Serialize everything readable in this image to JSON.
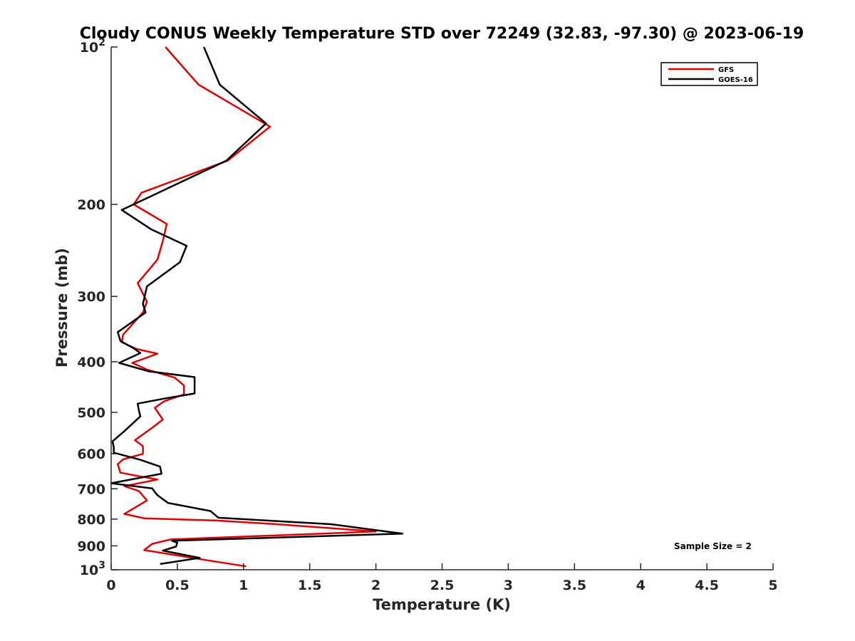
{
  "chart_data": {
    "type": "line",
    "title": "Cloudy CONUS Weekly Temperature STD over 72249 (32.83, -97.30) @ 2023-06-19",
    "xlabel": "Temperature (K)",
    "ylabel": "Pressure (mb)",
    "xlim": [
      0,
      5
    ],
    "ylim": [
      1000,
      100
    ],
    "yscale": "log",
    "y_reversed": true,
    "x_ticks": [
      {
        "value": 0,
        "label": "0"
      },
      {
        "value": 0.5,
        "label": "0.5"
      },
      {
        "value": 1,
        "label": "1"
      },
      {
        "value": 1.5,
        "label": "1.5"
      },
      {
        "value": 2,
        "label": "2"
      },
      {
        "value": 2.5,
        "label": "2.5"
      },
      {
        "value": 3,
        "label": "3"
      },
      {
        "value": 3.5,
        "label": "3.5"
      },
      {
        "value": 4,
        "label": "4"
      },
      {
        "value": 4.5,
        "label": "4.5"
      },
      {
        "value": 5,
        "label": "5"
      }
    ],
    "y_ticks": [
      {
        "value": 100,
        "base": "10",
        "exp": "2"
      },
      {
        "value": 200,
        "label": "200"
      },
      {
        "value": 300,
        "label": "300"
      },
      {
        "value": 400,
        "label": "400"
      },
      {
        "value": 500,
        "label": "500"
      },
      {
        "value": 600,
        "label": "600"
      },
      {
        "value": 700,
        "label": "700"
      },
      {
        "value": 800,
        "label": "800"
      },
      {
        "value": 900,
        "label": "900"
      },
      {
        "value": 1000,
        "base": "10",
        "exp": "3"
      }
    ],
    "grid": false,
    "legend": {
      "position": "top-right"
    },
    "annotation": "Sample Size = 2",
    "series": [
      {
        "name": "GFS",
        "color": "#e00000",
        "points": [
          [
            0.41,
            100
          ],
          [
            0.66,
            118
          ],
          [
            1.2,
            142
          ],
          [
            0.88,
            165
          ],
          [
            0.23,
            190
          ],
          [
            0.17,
            200
          ],
          [
            0.42,
            218
          ],
          [
            0.39,
            235
          ],
          [
            0.35,
            255
          ],
          [
            0.2,
            283
          ],
          [
            0.27,
            307
          ],
          [
            0.24,
            322
          ],
          [
            0.09,
            355
          ],
          [
            0.08,
            367
          ],
          [
            0.19,
            378
          ],
          [
            0.35,
            386
          ],
          [
            0.16,
            402
          ],
          [
            0.27,
            414
          ],
          [
            0.48,
            429
          ],
          [
            0.55,
            444
          ],
          [
            0.55,
            462
          ],
          [
            0.4,
            476
          ],
          [
            0.33,
            490
          ],
          [
            0.39,
            516
          ],
          [
            0.31,
            535
          ],
          [
            0.18,
            565
          ],
          [
            0.24,
            580
          ],
          [
            0.24,
            600
          ],
          [
            0.09,
            615
          ],
          [
            0.05,
            628
          ],
          [
            0.07,
            652
          ],
          [
            0.35,
            672
          ],
          [
            0.1,
            692
          ],
          [
            0.21,
            707
          ],
          [
            0.27,
            737
          ],
          [
            0.1,
            782
          ],
          [
            0.25,
            797
          ],
          [
            0.8,
            805
          ],
          [
            1.25,
            818
          ],
          [
            2.0,
            845
          ],
          [
            0.45,
            875
          ],
          [
            0.31,
            892
          ],
          [
            0.25,
            917
          ],
          [
            0.76,
            962
          ],
          [
            1.02,
            985
          ]
        ]
      },
      {
        "name": "GOES-16",
        "color": "#000000",
        "points": [
          [
            0.7,
            100
          ],
          [
            0.82,
            118
          ],
          [
            1.17,
            140
          ],
          [
            0.87,
            165
          ],
          [
            0.3,
            193
          ],
          [
            0.08,
            205
          ],
          [
            0.3,
            223
          ],
          [
            0.57,
            240
          ],
          [
            0.52,
            258
          ],
          [
            0.27,
            287
          ],
          [
            0.24,
            310
          ],
          [
            0.26,
            322
          ],
          [
            0.05,
            351
          ],
          [
            0.07,
            365
          ],
          [
            0.17,
            377
          ],
          [
            0.22,
            385
          ],
          [
            0.06,
            402
          ],
          [
            0.28,
            417
          ],
          [
            0.63,
            428
          ],
          [
            0.63,
            460
          ],
          [
            0.41,
            470
          ],
          [
            0.2,
            481
          ],
          [
            0.21,
            496
          ],
          [
            0.22,
            509
          ],
          [
            0.1,
            543
          ],
          [
            0.01,
            568
          ],
          [
            0.02,
            583
          ],
          [
            0.02,
            597
          ],
          [
            0.22,
            616
          ],
          [
            0.37,
            635
          ],
          [
            0.38,
            655
          ],
          [
            0.0,
            683
          ],
          [
            0.31,
            699
          ],
          [
            0.33,
            710
          ],
          [
            0.35,
            720
          ],
          [
            0.43,
            745
          ],
          [
            0.75,
            772
          ],
          [
            0.81,
            795
          ],
          [
            1.66,
            818
          ],
          [
            2.2,
            853
          ],
          [
            0.46,
            880
          ],
          [
            0.5,
            888
          ],
          [
            0.49,
            903
          ],
          [
            0.39,
            919
          ],
          [
            0.67,
            949
          ],
          [
            0.37,
            975
          ]
        ]
      }
    ]
  }
}
